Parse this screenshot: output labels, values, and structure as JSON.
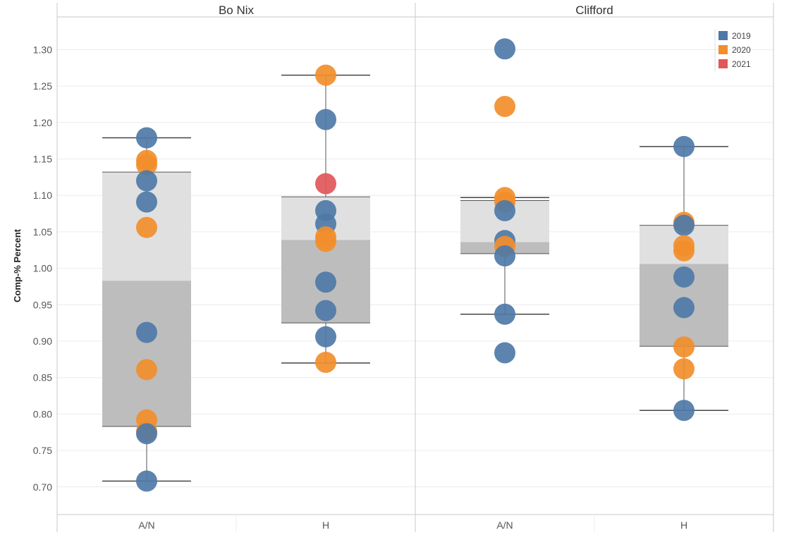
{
  "chart_data": {
    "type": "boxplot-scatter",
    "ylabel": "Comp-% Percent",
    "ylim": [
      0.65,
      1.35
    ],
    "yticks": [
      "0.70",
      "0.75",
      "0.80",
      "0.85",
      "0.90",
      "0.95",
      "1.00",
      "1.05",
      "1.10",
      "1.15",
      "1.20",
      "1.25",
      "1.30"
    ],
    "grid": true,
    "legend_position": "top-right",
    "legend": [
      {
        "name": "2019",
        "color": "#4e79a7"
      },
      {
        "name": "2020",
        "color": "#f28e2b"
      },
      {
        "name": "2021",
        "color": "#e15759"
      }
    ],
    "panels": [
      {
        "title": "Bo Nix",
        "groups": [
          {
            "label": "A/N",
            "box": {
              "whisker_low": 0.708,
              "q1": 0.783,
              "median": 0.983,
              "q3": 1.132,
              "whisker_high": 1.179
            },
            "points": [
              {
                "value": 1.179,
                "year": "2019"
              },
              {
                "value": 1.148,
                "year": "2020"
              },
              {
                "value": 1.142,
                "year": "2020"
              },
              {
                "value": 1.12,
                "year": "2019"
              },
              {
                "value": 1.091,
                "year": "2019"
              },
              {
                "value": 1.056,
                "year": "2020"
              },
              {
                "value": 0.912,
                "year": "2019"
              },
              {
                "value": 0.861,
                "year": "2020"
              },
              {
                "value": 0.792,
                "year": "2020"
              },
              {
                "value": 0.776,
                "year": "2020"
              },
              {
                "value": 0.773,
                "year": "2019"
              },
              {
                "value": 0.708,
                "year": "2019"
              }
            ]
          },
          {
            "label": "H",
            "box": {
              "whisker_low": 0.87,
              "q1": 0.925,
              "median": 1.039,
              "q3": 1.098,
              "whisker_high": 1.265
            },
            "points": [
              {
                "value": 1.265,
                "year": "2020"
              },
              {
                "value": 1.204,
                "year": "2019"
              },
              {
                "value": 1.116,
                "year": "2021"
              },
              {
                "value": 1.079,
                "year": "2019"
              },
              {
                "value": 1.061,
                "year": "2019"
              },
              {
                "value": 1.043,
                "year": "2020"
              },
              {
                "value": 1.037,
                "year": "2020"
              },
              {
                "value": 0.981,
                "year": "2019"
              },
              {
                "value": 0.942,
                "year": "2019"
              },
              {
                "value": 0.906,
                "year": "2019"
              },
              {
                "value": 0.871,
                "year": "2020"
              }
            ]
          }
        ]
      },
      {
        "title": "Clifford",
        "groups": [
          {
            "label": "A/N",
            "box": {
              "whisker_low": 0.937,
              "q1": 1.02,
              "median": 1.036,
              "q3": 1.093,
              "whisker_high": 1.097
            },
            "points": [
              {
                "value": 1.301,
                "year": "2019"
              },
              {
                "value": 1.222,
                "year": "2020"
              },
              {
                "value": 1.097,
                "year": "2020"
              },
              {
                "value": 1.091,
                "year": "2020"
              },
              {
                "value": 1.079,
                "year": "2019"
              },
              {
                "value": 1.038,
                "year": "2019"
              },
              {
                "value": 1.03,
                "year": "2020"
              },
              {
                "value": 1.017,
                "year": "2019"
              },
              {
                "value": 0.937,
                "year": "2019"
              },
              {
                "value": 0.884,
                "year": "2019"
              }
            ]
          },
          {
            "label": "H",
            "box": {
              "whisker_low": 0.805,
              "q1": 0.893,
              "median": 1.006,
              "q3": 1.059,
              "whisker_high": 1.167
            },
            "points": [
              {
                "value": 1.167,
                "year": "2019"
              },
              {
                "value": 1.063,
                "year": "2020"
              },
              {
                "value": 1.059,
                "year": "2019"
              },
              {
                "value": 1.031,
                "year": "2020"
              },
              {
                "value": 1.024,
                "year": "2020"
              },
              {
                "value": 0.988,
                "year": "2019"
              },
              {
                "value": 0.946,
                "year": "2019"
              },
              {
                "value": 0.892,
                "year": "2020"
              },
              {
                "value": 0.862,
                "year": "2020"
              },
              {
                "value": 0.805,
                "year": "2019"
              }
            ]
          }
        ]
      }
    ]
  }
}
